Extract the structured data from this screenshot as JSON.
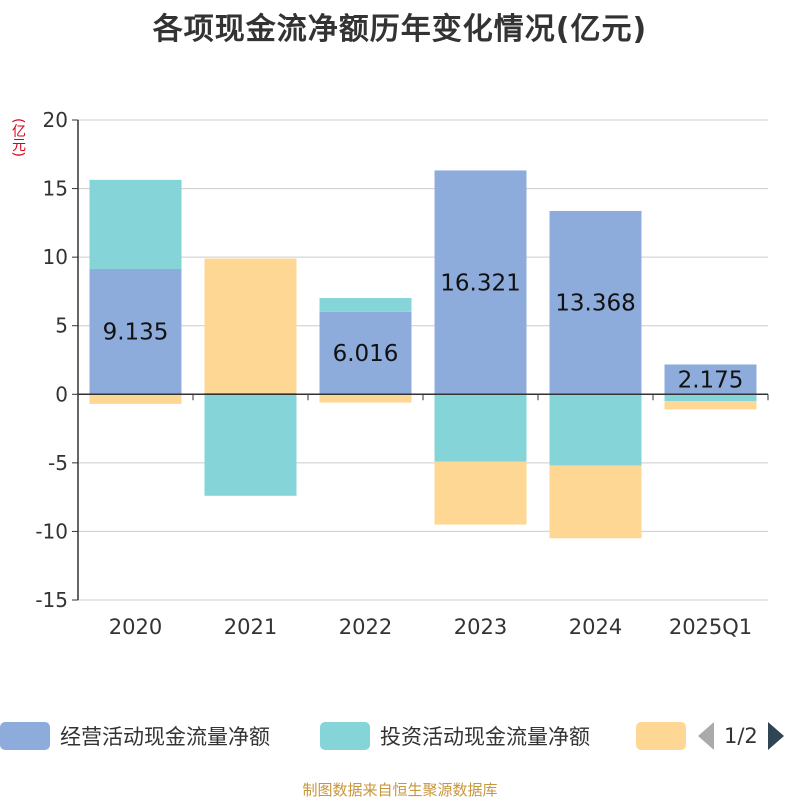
{
  "title": "各项现金流净额历年变化情况(亿元)",
  "unit_label": "(亿元)",
  "footer": "制图数据来自恒生聚源数据库",
  "legend": {
    "items": [
      {
        "label": "经营活动现金流量净额",
        "color": "#8eacdb"
      },
      {
        "label": "投资活动现金流量净额",
        "color": "#85d4d8"
      },
      {
        "label": "",
        "color": "#fed794"
      }
    ],
    "pager_text": "1/2"
  },
  "chart_data": {
    "type": "bar",
    "stacked": true,
    "categories": [
      "2020",
      "2021",
      "2022",
      "2023",
      "2024",
      "2025Q1"
    ],
    "ylim": [
      -15,
      20
    ],
    "yticks": [
      20,
      15,
      10,
      5,
      0,
      -5,
      -10,
      -15
    ],
    "grid": true,
    "legend_position": "bottom",
    "series": [
      {
        "name": "经营活动现金流量净额",
        "color": "#8eacdb",
        "values": [
          9.135,
          0.1,
          6.016,
          16.321,
          13.368,
          2.175
        ],
        "labels": [
          "9.135",
          "",
          "6.016",
          "16.321",
          "13.368",
          "2.175"
        ]
      },
      {
        "name": "投资活动现金流量净额",
        "color": "#85d4d8",
        "values": [
          6.5,
          -7.4,
          1.0,
          -4.9,
          -5.2,
          -0.5
        ]
      },
      {
        "color": "#fed794",
        "values": [
          -0.7,
          9.8,
          -0.6,
          -4.6,
          -5.3,
          -0.6
        ]
      }
    ]
  }
}
